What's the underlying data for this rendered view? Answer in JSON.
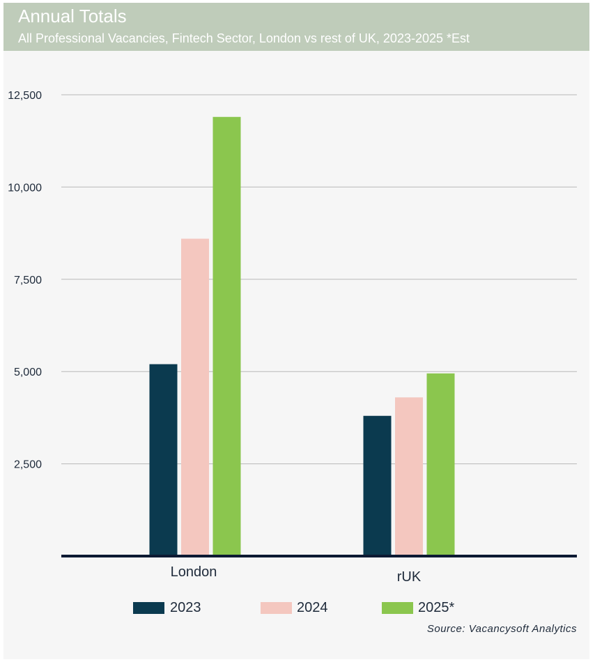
{
  "header": {
    "title": "Annual Totals",
    "subtitle": "All Professional Vacancies, Fintech Sector, London vs rest of UK, 2023-2025 *Est"
  },
  "source": "Source: Vacancysoft Analytics",
  "colors": {
    "header_bg": "#bfccba",
    "panel_bg": "#f6f6f6",
    "series": [
      "#0b3a4f",
      "#f4c7bf",
      "#8bc64e"
    ],
    "axis": "#0d1a33",
    "grid": "#b8b8b8"
  },
  "chart_data": {
    "type": "bar",
    "title": "Annual Totals",
    "subtitle": "All Professional Vacancies, Fintech Sector, London vs rest of UK, 2023-2025 *Est",
    "categories": [
      "London",
      "rUK"
    ],
    "series": [
      {
        "name": "2023",
        "values": [
          5200,
          3800
        ]
      },
      {
        "name": "2024",
        "values": [
          8600,
          4300
        ]
      },
      {
        "name": "2025*",
        "values": [
          11900,
          4950
        ]
      }
    ],
    "ylim": [
      0,
      12500
    ],
    "yticks": [
      2500,
      5000,
      7500,
      10000,
      12500
    ],
    "ytick_labels": [
      "2,500",
      "5,000",
      "7,500",
      "10,000",
      "12,500"
    ],
    "xlabel": "",
    "ylabel": "",
    "grid": true,
    "legend_position": "bottom"
  }
}
